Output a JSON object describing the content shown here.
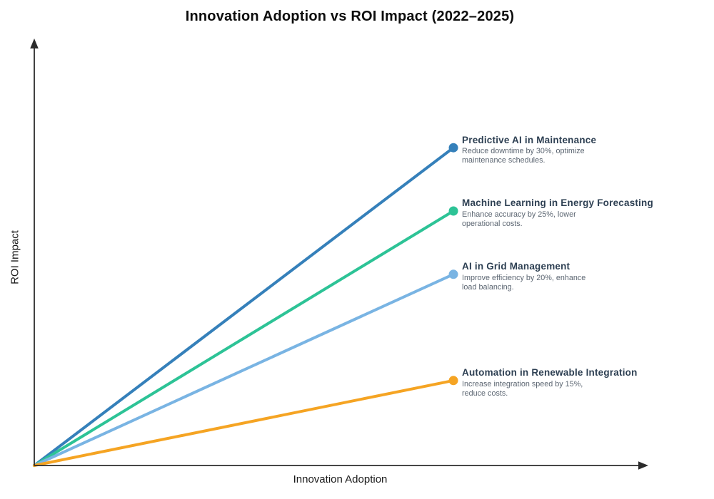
{
  "chart_data": {
    "type": "line",
    "title": "Innovation Adoption vs ROI Impact (2022–2025)",
    "xlabel": "Innovation Adoption",
    "ylabel": "ROI Impact",
    "xlim": [
      0,
      1
    ],
    "ylim": [
      0,
      1
    ],
    "grid": false,
    "ticks": "none",
    "axis_style": "arrow-ends",
    "axis_color": "#2b2b2b",
    "legend_position": "inline-labels-at-line-ends",
    "label_title_color": "#2e4053",
    "label_desc_color": "#5c6672",
    "series": [
      {
        "name": "Predictive AI in Maintenance",
        "description": "Reduce downtime by 30%, optimize\nmaintenance schedules.",
        "color": "#3580ba",
        "x": [
          0,
          0.685
        ],
        "y": [
          0,
          0.748
        ]
      },
      {
        "name": "Machine Learning in Energy Forecasting",
        "description": "Enhance accuracy by 25%, lower\noperational costs.",
        "color": "#2dc396",
        "x": [
          0,
          0.685
        ],
        "y": [
          0,
          0.599
        ]
      },
      {
        "name": "AI in Grid Management",
        "description": "Improve efficiency by 20%, enhance\nload balancing.",
        "color": "#79b4e3",
        "x": [
          0,
          0.685
        ],
        "y": [
          0,
          0.45
        ]
      },
      {
        "name": "Automation in Renewable Integration",
        "description": "Increase integration speed by 15%,\nreduce costs.",
        "color": "#f5a423",
        "x": [
          0,
          0.685
        ],
        "y": [
          0,
          0.2
        ]
      }
    ]
  }
}
